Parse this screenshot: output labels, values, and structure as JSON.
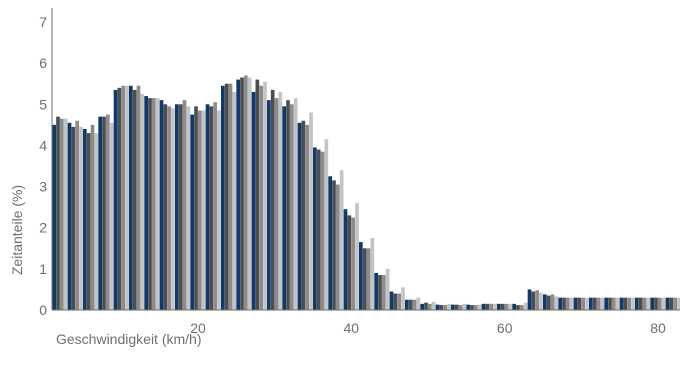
{
  "chart_data": {
    "type": "bar",
    "title": "",
    "xlabel": "Geschwindigkeit (km/h)",
    "ylabel": "Zeitanteile (%)",
    "ylim": [
      0,
      7
    ],
    "xlim": [
      1,
      82
    ],
    "xticks": [
      20,
      40,
      60,
      80
    ],
    "yticks": [
      0,
      1,
      2,
      3,
      4,
      5,
      6,
      7
    ],
    "grid": false,
    "legend": "none",
    "colors": [
      "#0d3b6e",
      "#4d4d4d",
      "#8c8c8c",
      "#c4c4c4"
    ],
    "x": [
      2,
      4,
      6,
      8,
      10,
      12,
      14,
      16,
      18,
      20,
      22,
      24,
      26,
      28,
      30,
      32,
      34,
      36,
      38,
      40,
      42,
      44,
      46,
      48,
      50,
      52,
      54,
      56,
      58,
      60,
      62,
      64,
      66,
      68,
      70,
      72,
      74,
      76,
      78,
      80,
      82
    ],
    "series": [
      {
        "values": [
          4.5,
          4.55,
          4.4,
          4.7,
          5.35,
          5.45,
          5.2,
          5.1,
          5.0,
          4.75,
          5.0,
          5.45,
          5.6,
          5.3,
          5.1,
          4.95,
          4.55,
          3.95,
          3.25,
          2.45,
          1.65,
          0.9,
          0.45,
          0.25,
          0.15,
          0.13,
          0.13,
          0.13,
          0.15,
          0.15,
          0.15,
          0.5,
          0.38,
          0.3,
          0.3,
          0.3,
          0.3,
          0.3,
          0.3,
          0.3,
          0.3
        ]
      },
      {
        "values": [
          4.7,
          4.45,
          4.3,
          4.7,
          5.4,
          5.35,
          5.15,
          5.0,
          5.0,
          4.95,
          4.95,
          5.5,
          5.65,
          5.6,
          5.35,
          5.1,
          4.6,
          3.9,
          3.15,
          2.3,
          1.5,
          0.85,
          0.4,
          0.25,
          0.18,
          0.12,
          0.13,
          0.12,
          0.15,
          0.15,
          0.12,
          0.45,
          0.35,
          0.3,
          0.3,
          0.3,
          0.3,
          0.3,
          0.3,
          0.3,
          0.3
        ]
      },
      {
        "values": [
          4.65,
          4.6,
          4.5,
          4.75,
          5.45,
          5.45,
          5.15,
          4.95,
          5.1,
          4.85,
          5.05,
          5.5,
          5.7,
          5.45,
          5.15,
          5.0,
          4.5,
          3.85,
          3.05,
          2.25,
          1.5,
          0.85,
          0.4,
          0.25,
          0.15,
          0.12,
          0.12,
          0.12,
          0.15,
          0.15,
          0.12,
          0.48,
          0.38,
          0.3,
          0.3,
          0.3,
          0.3,
          0.3,
          0.3,
          0.3,
          0.3
        ]
      },
      {
        "values": [
          4.65,
          4.45,
          4.3,
          4.55,
          5.45,
          5.25,
          5.15,
          4.9,
          4.95,
          4.85,
          4.85,
          5.3,
          5.65,
          5.55,
          5.3,
          5.15,
          4.8,
          4.15,
          3.4,
          2.6,
          1.75,
          1.0,
          0.55,
          0.3,
          0.2,
          0.15,
          0.15,
          0.13,
          0.15,
          0.15,
          0.18,
          0.42,
          0.33,
          0.3,
          0.3,
          0.3,
          0.3,
          0.3,
          0.3,
          0.3,
          0.3
        ]
      }
    ]
  }
}
